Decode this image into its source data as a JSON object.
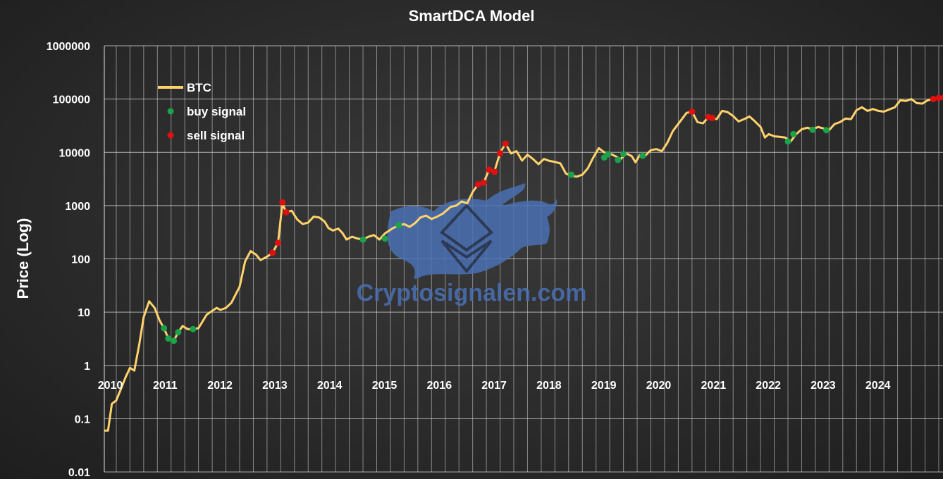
{
  "chart_data": {
    "type": "line",
    "title": "SmartDCA Model",
    "ylabel": "Price (Log)",
    "xlabel": "",
    "yscale": "log",
    "xlim": [
      2010,
      2025
    ],
    "ylim": [
      0.01,
      1000000
    ],
    "yticks": [
      {
        "value": 1000000,
        "label": "1000000"
      },
      {
        "value": 100000,
        "label": "100000"
      },
      {
        "value": 10000,
        "label": "10000"
      },
      {
        "value": 1000,
        "label": "1000"
      },
      {
        "value": 100,
        "label": "100"
      },
      {
        "value": 10,
        "label": "10"
      },
      {
        "value": 1,
        "label": "1"
      },
      {
        "value": 0.1,
        "label": "0.1"
      },
      {
        "value": 0.01,
        "label": "0.01"
      }
    ],
    "xticks": [
      {
        "value": 2010,
        "label": "2010"
      },
      {
        "value": 2011,
        "label": "2011"
      },
      {
        "value": 2012,
        "label": "2012"
      },
      {
        "value": 2013,
        "label": "2013"
      },
      {
        "value": 2014,
        "label": "2014"
      },
      {
        "value": 2015,
        "label": "2015"
      },
      {
        "value": 2016,
        "label": "2016"
      },
      {
        "value": 2017,
        "label": "2017"
      },
      {
        "value": 2018,
        "label": "2018"
      },
      {
        "value": 2019,
        "label": "2019"
      },
      {
        "value": 2020,
        "label": "2020"
      },
      {
        "value": 2021,
        "label": "2021"
      },
      {
        "value": 2022,
        "label": "2022"
      },
      {
        "value": 2023,
        "label": "2023"
      },
      {
        "value": 2024,
        "label": "2024"
      }
    ],
    "grid": {
      "vertical_per_year": 4,
      "horizontal": true
    },
    "legend_position": "top-left",
    "legend": [
      {
        "name": "BTC",
        "kind": "line",
        "color": "#ffd36b"
      },
      {
        "name": "buy signal",
        "kind": "dot",
        "color": "#1aa34a"
      },
      {
        "name": "sell signal",
        "kind": "dot",
        "color": "#e01010"
      }
    ],
    "series": [
      {
        "name": "BTC",
        "color": "#ffd36b",
        "points": [
          [
            2010.0,
            0.06
          ],
          [
            2010.1,
            0.06
          ],
          [
            2010.17,
            0.19
          ],
          [
            2010.25,
            0.22
          ],
          [
            2010.33,
            0.35
          ],
          [
            2010.42,
            0.6
          ],
          [
            2010.5,
            0.9
          ],
          [
            2010.58,
            0.8
          ],
          [
            2010.67,
            2.5
          ],
          [
            2010.75,
            8
          ],
          [
            2010.85,
            16
          ],
          [
            2010.95,
            12
          ],
          [
            2011.04,
            7
          ],
          [
            2011.12,
            5
          ],
          [
            2011.2,
            3.2
          ],
          [
            2011.3,
            2.9
          ],
          [
            2011.38,
            4.2
          ],
          [
            2011.46,
            5.5
          ],
          [
            2011.55,
            4.8
          ],
          [
            2011.65,
            4.8
          ],
          [
            2011.75,
            5
          ],
          [
            2011.9,
            9
          ],
          [
            2012.08,
            12
          ],
          [
            2012.15,
            11
          ],
          [
            2012.25,
            12
          ],
          [
            2012.35,
            15
          ],
          [
            2012.5,
            30
          ],
          [
            2012.6,
            90
          ],
          [
            2012.7,
            140
          ],
          [
            2012.8,
            120
          ],
          [
            2012.88,
            95
          ],
          [
            2013.0,
            110
          ],
          [
            2013.1,
            130
          ],
          [
            2013.2,
            200
          ],
          [
            2013.28,
            1100
          ],
          [
            2013.35,
            750
          ],
          [
            2013.45,
            800
          ],
          [
            2013.55,
            550
          ],
          [
            2013.65,
            450
          ],
          [
            2013.75,
            480
          ],
          [
            2013.85,
            620
          ],
          [
            2013.95,
            600
          ],
          [
            2014.05,
            500
          ],
          [
            2014.12,
            380
          ],
          [
            2014.2,
            340
          ],
          [
            2014.3,
            370
          ],
          [
            2014.38,
            300
          ],
          [
            2014.45,
            230
          ],
          [
            2014.55,
            260
          ],
          [
            2014.65,
            240
          ],
          [
            2014.75,
            230
          ],
          [
            2014.85,
            260
          ],
          [
            2014.95,
            280
          ],
          [
            2015.05,
            230
          ],
          [
            2015.15,
            300
          ],
          [
            2015.3,
            380
          ],
          [
            2015.4,
            420
          ],
          [
            2015.5,
            450
          ],
          [
            2015.6,
            400
          ],
          [
            2015.7,
            470
          ],
          [
            2015.8,
            600
          ],
          [
            2015.9,
            650
          ],
          [
            2016.0,
            560
          ],
          [
            2016.1,
            620
          ],
          [
            2016.2,
            700
          ],
          [
            2016.35,
            950
          ],
          [
            2016.45,
            1000
          ],
          [
            2016.55,
            1200
          ],
          [
            2016.65,
            1100
          ],
          [
            2016.75,
            1800
          ],
          [
            2016.85,
            2500
          ],
          [
            2016.95,
            2700
          ],
          [
            2017.05,
            4700
          ],
          [
            2017.15,
            4500
          ],
          [
            2017.25,
            9800
          ],
          [
            2017.35,
            14500
          ],
          [
            2017.45,
            9500
          ],
          [
            2017.55,
            10500
          ],
          [
            2017.65,
            7000
          ],
          [
            2017.75,
            9000
          ],
          [
            2017.85,
            7500
          ],
          [
            2017.95,
            6000
          ],
          [
            2018.05,
            7500
          ],
          [
            2018.15,
            6900
          ],
          [
            2018.25,
            6600
          ],
          [
            2018.35,
            6200
          ],
          [
            2018.45,
            4000
          ],
          [
            2018.55,
            3600
          ],
          [
            2018.65,
            3500
          ],
          [
            2018.75,
            3800
          ],
          [
            2018.85,
            5000
          ],
          [
            2018.95,
            8000
          ],
          [
            2019.05,
            12000
          ],
          [
            2019.15,
            10000
          ],
          [
            2019.25,
            9500
          ],
          [
            2019.35,
            8500
          ],
          [
            2019.45,
            7500
          ],
          [
            2019.55,
            9500
          ],
          [
            2019.65,
            8500
          ],
          [
            2019.72,
            6500
          ],
          [
            2019.8,
            9000
          ],
          [
            2019.9,
            8700
          ],
          [
            2020.0,
            11000
          ],
          [
            2020.1,
            11500
          ],
          [
            2020.2,
            10500
          ],
          [
            2020.3,
            15000
          ],
          [
            2020.4,
            25000
          ],
          [
            2020.55,
            40000
          ],
          [
            2020.65,
            55000
          ],
          [
            2020.75,
            58000
          ],
          [
            2020.85,
            37000
          ],
          [
            2020.95,
            35000
          ],
          [
            2021.05,
            46000
          ],
          [
            2021.12,
            44000
          ],
          [
            2021.2,
            42000
          ],
          [
            2021.3,
            60000
          ],
          [
            2021.4,
            57000
          ],
          [
            2021.5,
            48000
          ],
          [
            2021.6,
            38000
          ],
          [
            2021.7,
            42000
          ],
          [
            2021.8,
            47000
          ],
          [
            2021.9,
            38000
          ],
          [
            2022.0,
            30000
          ],
          [
            2022.08,
            19000
          ],
          [
            2022.15,
            22000
          ],
          [
            2022.25,
            20000
          ],
          [
            2022.35,
            19500
          ],
          [
            2022.45,
            19000
          ],
          [
            2022.55,
            16000
          ],
          [
            2022.65,
            22000
          ],
          [
            2022.75,
            27000
          ],
          [
            2022.85,
            29000
          ],
          [
            2022.95,
            27000
          ],
          [
            2023.05,
            30000
          ],
          [
            2023.15,
            28000
          ],
          [
            2023.25,
            26000
          ],
          [
            2023.35,
            34000
          ],
          [
            2023.45,
            37000
          ],
          [
            2023.55,
            43000
          ],
          [
            2023.65,
            42000
          ],
          [
            2023.75,
            62000
          ],
          [
            2023.85,
            70000
          ],
          [
            2023.95,
            60000
          ],
          [
            2024.05,
            65000
          ],
          [
            2024.15,
            60000
          ],
          [
            2024.25,
            58000
          ],
          [
            2024.35,
            64000
          ],
          [
            2024.45,
            70000
          ],
          [
            2024.55,
            95000
          ],
          [
            2024.65,
            92000
          ],
          [
            2024.75,
            100000
          ],
          [
            2024.85,
            84000
          ],
          [
            2024.95,
            82000
          ],
          [
            2025.05,
            95000
          ],
          [
            2025.15,
            100000
          ],
          [
            2025.25,
            108000
          ],
          [
            2025.35,
            110000
          ],
          [
            2025.45,
            115000
          ],
          [
            2025.55,
            112000
          ]
        ]
      }
    ],
    "buy_signals": [
      [
        2011.12,
        5
      ],
      [
        2011.2,
        3.2
      ],
      [
        2011.3,
        2.9
      ],
      [
        2011.38,
        4.2
      ],
      [
        2011.65,
        4.8
      ],
      [
        2014.75,
        230
      ],
      [
        2015.15,
        240
      ],
      [
        2015.4,
        430
      ],
      [
        2018.55,
        3800
      ],
      [
        2019.15,
        8000
      ],
      [
        2019.22,
        9200
      ],
      [
        2019.4,
        7200
      ],
      [
        2019.5,
        9300
      ],
      [
        2019.85,
        8600
      ],
      [
        2022.5,
        16000
      ],
      [
        2022.6,
        22000
      ],
      [
        2022.95,
        26500
      ],
      [
        2023.2,
        26000
      ]
    ],
    "sell_signals": [
      [
        2013.1,
        130
      ],
      [
        2013.2,
        200
      ],
      [
        2013.28,
        1150
      ],
      [
        2013.35,
        750
      ],
      [
        2016.85,
        2500
      ],
      [
        2016.95,
        2700
      ],
      [
        2017.05,
        4700
      ],
      [
        2017.15,
        4300
      ],
      [
        2017.25,
        9600
      ],
      [
        2017.35,
        14500
      ],
      [
        2020.75,
        58000
      ],
      [
        2021.05,
        46000
      ],
      [
        2021.12,
        44000
      ],
      [
        2025.15,
        100000
      ],
      [
        2025.25,
        105000
      ],
      [
        2025.35,
        108000
      ],
      [
        2025.45,
        115000
      ]
    ]
  },
  "watermark": {
    "text": "Cryptosignalen.com",
    "color": "#4a70b4",
    "icon": "bull-ethereum-logo-icon"
  }
}
